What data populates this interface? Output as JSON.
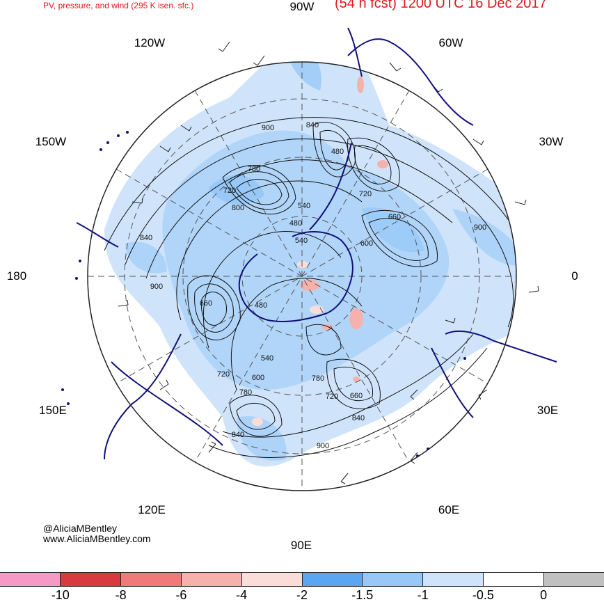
{
  "header": {
    "left_title": "PV, pressure, and wind (295 K isen. sfc.)",
    "right_title": "(54 h fcst) 1200 UTC 16 Dec 2017"
  },
  "longitude_labels": {
    "n90w": "90W",
    "n120w": "120W",
    "n60w": "60W",
    "n150w": "150W",
    "n30w": "30W",
    "n180": "180",
    "n0": "0",
    "n150e": "150E",
    "n30e": "30E",
    "n120e": "120E",
    "n60e": "60E",
    "n90e": "90E"
  },
  "contour_labels": {
    "c1": "900",
    "c2": "840",
    "c3": "780",
    "c4": "720",
    "c5": "800",
    "c6": "840",
    "c7": "540",
    "c8": "480",
    "c9": "540",
    "c10": "720",
    "c11": "660",
    "c12": "600",
    "c13": "900",
    "c14": "900",
    "c15": "660",
    "c16": "480",
    "c17": "540",
    "c18": "720",
    "c19": "600",
    "c20": "780",
    "c21": "780",
    "c22": "720",
    "c23": "660",
    "c24": "840",
    "c25": "840",
    "c26": "900",
    "c27": "480"
  },
  "credits": {
    "handle": "@AliciaMBentley",
    "website": "www.AliciaMBentley.com"
  },
  "colorbar": {
    "colors": [
      "#f59ac4",
      "#d93a3f",
      "#f07a7a",
      "#f7b1ac",
      "#fadcd8",
      "#5aa6f3",
      "#97c8f8",
      "#cfe4fb",
      "#ffffff",
      "#c0c0c0"
    ],
    "ticks": [
      "-10",
      "-8",
      "-6",
      "-4",
      "-2",
      "-1.5",
      "-1",
      "-0.5",
      "0"
    ]
  }
}
